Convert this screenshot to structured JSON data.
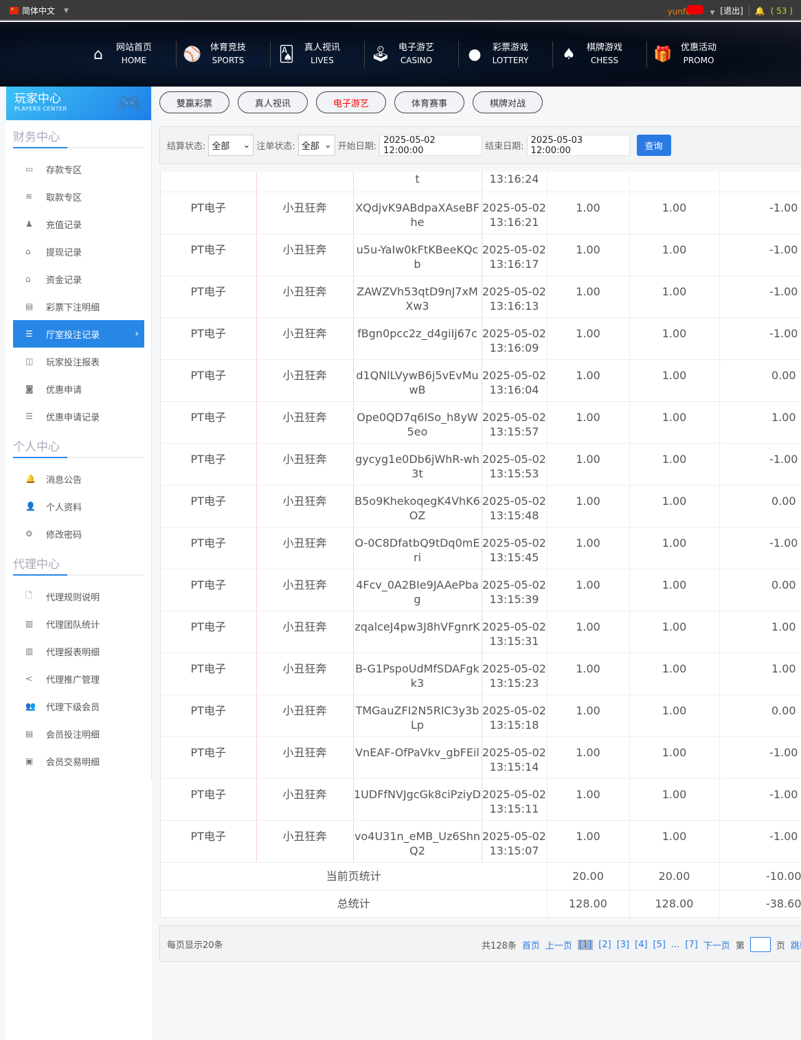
{
  "topbar": {
    "language": "简体中文",
    "username": "yunfe",
    "logout": "[退出]",
    "message_count": "( 53 )"
  },
  "nav": [
    {
      "icon": "home-icon",
      "glyph": "⌂",
      "cn": "网站首页",
      "en": "HOME"
    },
    {
      "icon": "sports-ball-icon",
      "glyph": "⚾",
      "cn": "体育竞技",
      "en": "SPORTS"
    },
    {
      "icon": "cards-icon",
      "glyph": "🂡",
      "cn": "真人视讯",
      "en": "LIVES"
    },
    {
      "icon": "joystick-icon",
      "glyph": "🕹",
      "cn": "电子游艺",
      "en": "CASINO"
    },
    {
      "icon": "lottery-balls-icon",
      "glyph": "●",
      "cn": "彩票游戏",
      "en": "LOTTERY"
    },
    {
      "icon": "spade-icon",
      "glyph": "♠",
      "cn": "棋牌游戏",
      "en": "CHESS"
    },
    {
      "icon": "gift-icon",
      "glyph": "🎁",
      "cn": "优惠活动",
      "en": "PROMO"
    }
  ],
  "sidebar": {
    "title": "玩家中心",
    "subtitle": "PLAYERS CENTER",
    "sections": [
      {
        "title": "财务中心",
        "items": [
          {
            "label": "存款专区",
            "icon": "card-icon",
            "glyph": "▭"
          },
          {
            "label": "取款专区",
            "icon": "hand-cash-icon",
            "glyph": "≋"
          },
          {
            "label": "充值记录",
            "icon": "money-bag-icon",
            "glyph": "♟"
          },
          {
            "label": "提现记录",
            "icon": "wallet-icon",
            "glyph": "⌂"
          },
          {
            "label": "资金记录",
            "icon": "safe-icon",
            "glyph": "⌂"
          },
          {
            "label": "彩票下注明细",
            "icon": "list-icon",
            "glyph": "▤"
          },
          {
            "label": "厅室投注记录",
            "icon": "list-bullets-icon",
            "glyph": "☰",
            "active": true
          },
          {
            "label": "玩家投注报表",
            "icon": "chart-icon",
            "glyph": "◫"
          },
          {
            "label": "优惠申请",
            "icon": "coupon-icon",
            "glyph": "◙"
          },
          {
            "label": "优惠申请记录",
            "icon": "list-bullets-icon",
            "glyph": "☰"
          }
        ]
      },
      {
        "title": "个人中心",
        "items": [
          {
            "label": "消息公告",
            "icon": "bell-icon",
            "glyph": "🔔"
          },
          {
            "label": "个人资料",
            "icon": "user-icon",
            "glyph": "👤"
          },
          {
            "label": "修改密码",
            "icon": "gear-icon",
            "glyph": "⚙"
          }
        ]
      },
      {
        "title": "代理中心",
        "items": [
          {
            "label": "代理规则说明",
            "icon": "document-icon",
            "glyph": "🗋"
          },
          {
            "label": "代理团队统计",
            "icon": "report-icon",
            "glyph": "▥"
          },
          {
            "label": "代理报表明细",
            "icon": "report-icon",
            "glyph": "▥"
          },
          {
            "label": "代理推广管理",
            "icon": "share-icon",
            "glyph": "<"
          },
          {
            "label": "代理下级会员",
            "icon": "users-icon",
            "glyph": "👥"
          },
          {
            "label": "会员投注明细",
            "icon": "clipboard-icon",
            "glyph": "▤"
          },
          {
            "label": "会员交易明细",
            "icon": "ledger-icon",
            "glyph": "▣"
          }
        ]
      }
    ]
  },
  "tabs": [
    {
      "label": "雙贏彩票"
    },
    {
      "label": "真人视讯"
    },
    {
      "label": "电子游艺",
      "active": true
    },
    {
      "label": "体育赛事"
    },
    {
      "label": "棋牌对战"
    }
  ],
  "filter": {
    "settle_label": "结算状态:",
    "settle_value": "全部",
    "bet_label": "注单状态:",
    "bet_value": "全部",
    "start_label": "开始日期:",
    "start_value": "2025-05-02 12:00:00",
    "end_label": "结束日期:",
    "end_value": "2025-05-03 12:00:00",
    "query": "查询"
  },
  "table": {
    "partial_row": {
      "id_tail": "t",
      "time": "13:16:24"
    },
    "rows": [
      [
        "PT电子",
        "小丑狂奔",
        "XQdjvK9ABdpaXAseBFhe",
        "2025-05-02 13:16:21",
        "1.00",
        "1.00",
        "-1.00"
      ],
      [
        "PT电子",
        "小丑狂奔",
        "u5u-YaIw0kFtKBeeKQcb",
        "2025-05-02 13:16:17",
        "1.00",
        "1.00",
        "-1.00"
      ],
      [
        "PT电子",
        "小丑狂奔",
        "ZAWZVh53qtD9nJ7xMXw3",
        "2025-05-02 13:16:13",
        "1.00",
        "1.00",
        "-1.00"
      ],
      [
        "PT电子",
        "小丑狂奔",
        "fBgn0pcc2z_d4giIj67c",
        "2025-05-02 13:16:09",
        "1.00",
        "1.00",
        "-1.00"
      ],
      [
        "PT电子",
        "小丑狂奔",
        "d1QNlLVywB6j5vEvMuwB",
        "2025-05-02 13:16:04",
        "1.00",
        "1.00",
        "0.00"
      ],
      [
        "PT电子",
        "小丑狂奔",
        "Ope0QD7q6ISo_h8yW5eo",
        "2025-05-02 13:15:57",
        "1.00",
        "1.00",
        "1.00"
      ],
      [
        "PT电子",
        "小丑狂奔",
        "gycyg1e0Db6jWhR-wh3t",
        "2025-05-02 13:15:53",
        "1.00",
        "1.00",
        "-1.00"
      ],
      [
        "PT电子",
        "小丑狂奔",
        "B5o9KhekoqegK4VhK6OZ",
        "2025-05-02 13:15:48",
        "1.00",
        "1.00",
        "0.00"
      ],
      [
        "PT电子",
        "小丑狂奔",
        "O-0C8DfatbQ9tDq0mEri",
        "2025-05-02 13:15:45",
        "1.00",
        "1.00",
        "-1.00"
      ],
      [
        "PT电子",
        "小丑狂奔",
        "4Fcv_0A2BIe9JAAePbag",
        "2025-05-02 13:15:39",
        "1.00",
        "1.00",
        "0.00"
      ],
      [
        "PT电子",
        "小丑狂奔",
        "zqalceJ4pw3J8hVFgnrK",
        "2025-05-02 13:15:31",
        "1.00",
        "1.00",
        "1.00"
      ],
      [
        "PT电子",
        "小丑狂奔",
        "B-G1PspoUdMfSDAFgkk3",
        "2025-05-02 13:15:23",
        "1.00",
        "1.00",
        "1.00"
      ],
      [
        "PT电子",
        "小丑狂奔",
        "TMGauZFI2N5RlC3y3bLp",
        "2025-05-02 13:15:18",
        "1.00",
        "1.00",
        "0.00"
      ],
      [
        "PT电子",
        "小丑狂奔",
        "VnEAF-OfPaVkv_gbFEil",
        "2025-05-02 13:15:14",
        "1.00",
        "1.00",
        "-1.00"
      ],
      [
        "PT电子",
        "小丑狂奔",
        "1UDFfNVJgcGk8ciPziyD",
        "2025-05-02 13:15:11",
        "1.00",
        "1.00",
        "-1.00"
      ],
      [
        "PT电子",
        "小丑狂奔",
        "vo4U31n_eMB_Uz6ShnQ2",
        "2025-05-02 13:15:07",
        "1.00",
        "1.00",
        "-1.00"
      ]
    ],
    "page_summary": {
      "label": "当前页统计",
      "bet": "20.00",
      "valid": "20.00",
      "result": "-10.00"
    },
    "total_summary": {
      "label": "总统计",
      "bet": "128.00",
      "valid": "128.00",
      "result": "-38.60"
    }
  },
  "pager": {
    "per_page": "每页显示20条",
    "total": "共128条",
    "first": "首页",
    "prev": "上一页",
    "pages": [
      "[1]",
      "[2]",
      "[3]",
      "[4]",
      "[5]",
      "...",
      "[7]"
    ],
    "current": "[1]",
    "next": "下一页",
    "goto_prefix": "第",
    "goto_suffix": "页",
    "jump": "跳转"
  }
}
